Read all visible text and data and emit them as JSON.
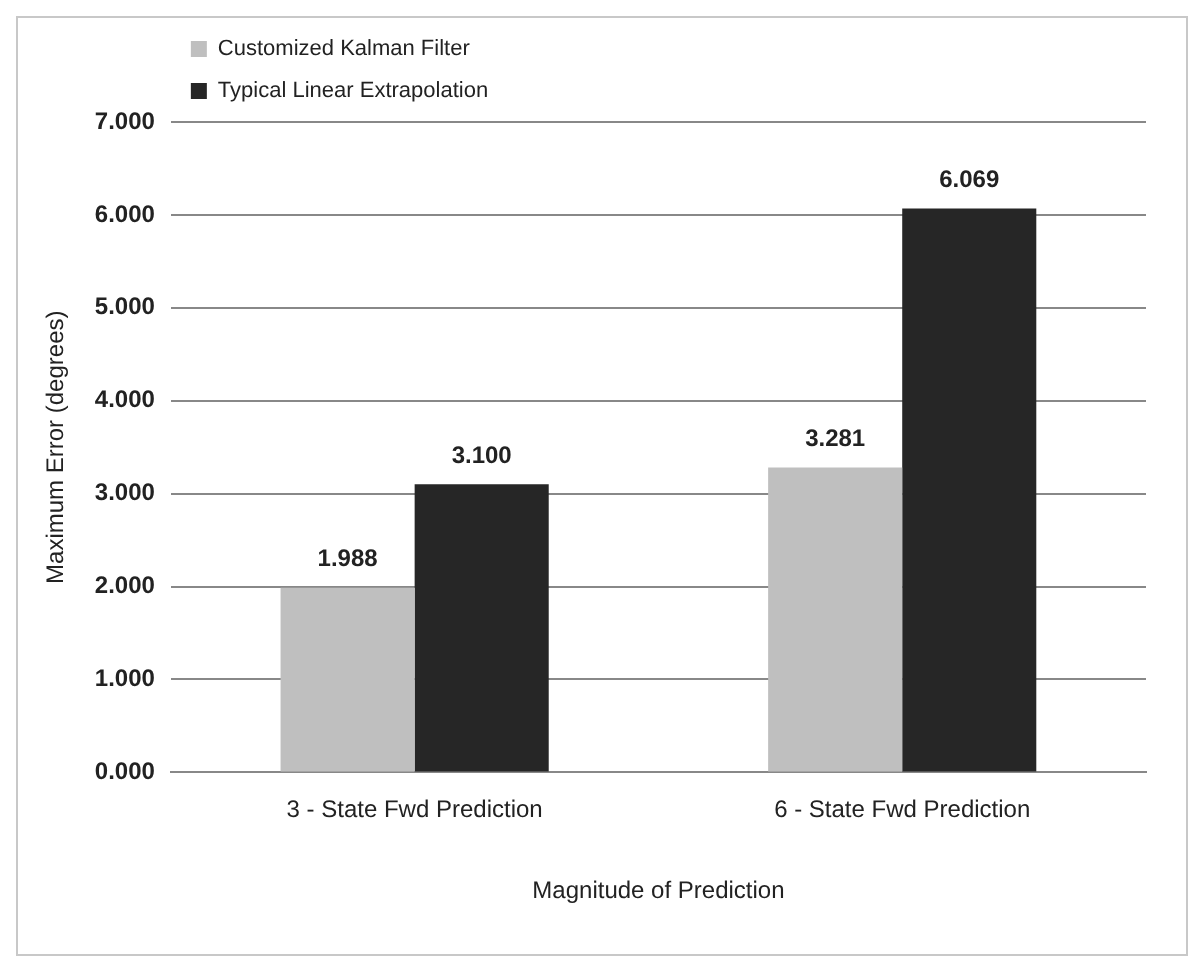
{
  "chart_data": {
    "type": "bar",
    "xlabel": "Magnitude of Prediction",
    "ylabel": "Maximum Error (degrees)",
    "categories": [
      "3 - State Fwd Prediction",
      "6 - State Fwd Prediction"
    ],
    "series": [
      {
        "name": "Customized Kalman Filter",
        "color": "#bfbfbf",
        "values": [
          1.988,
          3.281
        ],
        "value_labels": [
          "1.988",
          "3.281"
        ]
      },
      {
        "name": "Typical Linear Extrapolation",
        "color": "#262626",
        "values": [
          3.1,
          6.069
        ],
        "value_labels": [
          "3.100",
          "6.069"
        ]
      }
    ],
    "ylim": [
      0,
      7
    ],
    "yticks": [
      {
        "value": 0,
        "label": "0.000"
      },
      {
        "value": 1,
        "label": "1.000"
      },
      {
        "value": 2,
        "label": "2.000"
      },
      {
        "value": 3,
        "label": "3.000"
      },
      {
        "value": 4,
        "label": "4.000"
      },
      {
        "value": 5,
        "label": "5.000"
      },
      {
        "value": 6,
        "label": "6.000"
      },
      {
        "value": 7,
        "label": "7.000"
      }
    ],
    "grid": "y",
    "legend": "top left"
  }
}
